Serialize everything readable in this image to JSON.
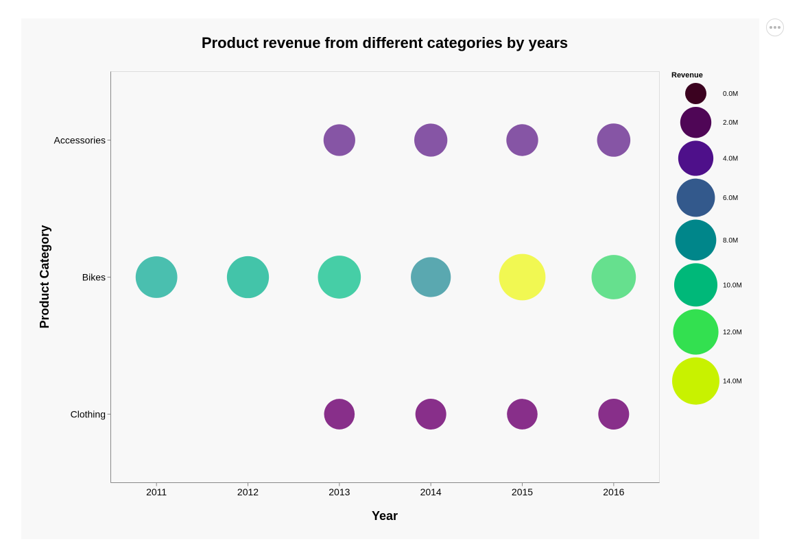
{
  "chart_data": {
    "type": "scatter",
    "title": "Product revenue from different categories by years",
    "xlabel": "Year",
    "ylabel": "Product Category",
    "x_categories": [
      "2011",
      "2012",
      "2013",
      "2014",
      "2015",
      "2016"
    ],
    "y_categories": [
      "Accessories",
      "Bikes",
      "Clothing"
    ],
    "size_and_color_field": "Revenue",
    "size_domain": [
      0,
      14000000
    ],
    "points": [
      {
        "x": "2013",
        "y": "Accessories",
        "revenue": 2250000
      },
      {
        "x": "2014",
        "y": "Accessories",
        "revenue": 2900000
      },
      {
        "x": "2015",
        "y": "Accessories",
        "revenue": 2300000
      },
      {
        "x": "2016",
        "y": "Accessories",
        "revenue": 3000000
      },
      {
        "x": "2011",
        "y": "Bikes",
        "revenue": 8600000
      },
      {
        "x": "2012",
        "y": "Bikes",
        "revenue": 8900000
      },
      {
        "x": "2013",
        "y": "Bikes",
        "revenue": 9700000
      },
      {
        "x": "2014",
        "y": "Bikes",
        "revenue": 7200000
      },
      {
        "x": "2015",
        "y": "Bikes",
        "revenue": 13100000
      },
      {
        "x": "2016",
        "y": "Bikes",
        "revenue": 11000000
      },
      {
        "x": "2013",
        "y": "Clothing",
        "revenue": 1800000
      },
      {
        "x": "2014",
        "y": "Clothing",
        "revenue": 1900000
      },
      {
        "x": "2015",
        "y": "Clothing",
        "revenue": 1800000
      },
      {
        "x": "2016",
        "y": "Clothing",
        "revenue": 1900000
      }
    ],
    "legend": {
      "title": "Revenue",
      "placement": "right",
      "entries": [
        {
          "label": "0.0M",
          "value": 0
        },
        {
          "label": "2.0M",
          "value": 2000000
        },
        {
          "label": "4.0M",
          "value": 4000000
        },
        {
          "label": "6.0M",
          "value": 6000000
        },
        {
          "label": "8.0M",
          "value": 8000000
        },
        {
          "label": "10.0M",
          "value": 10000000
        },
        {
          "label": "12.0M",
          "value": 12000000
        },
        {
          "label": "14.0M",
          "value": 14000000
        }
      ]
    },
    "colors": {
      "legend_swatches": [
        "#3b0220",
        "#4f0656",
        "#4e108a",
        "#33598c",
        "#00868a",
        "#00b879",
        "#33e050",
        "#c8f200"
      ],
      "Accessories": "#8655a5",
      "Clothing": "#882f8a",
      "Bikes_2011": "#4abfaf",
      "Bikes_2012": "#43c4a9",
      "Bikes_2013": "#46cea6",
      "Bikes_2014": "#5aa8b0",
      "Bikes_2015": "#f1f852",
      "Bikes_2016": "#66e08e"
    }
  }
}
